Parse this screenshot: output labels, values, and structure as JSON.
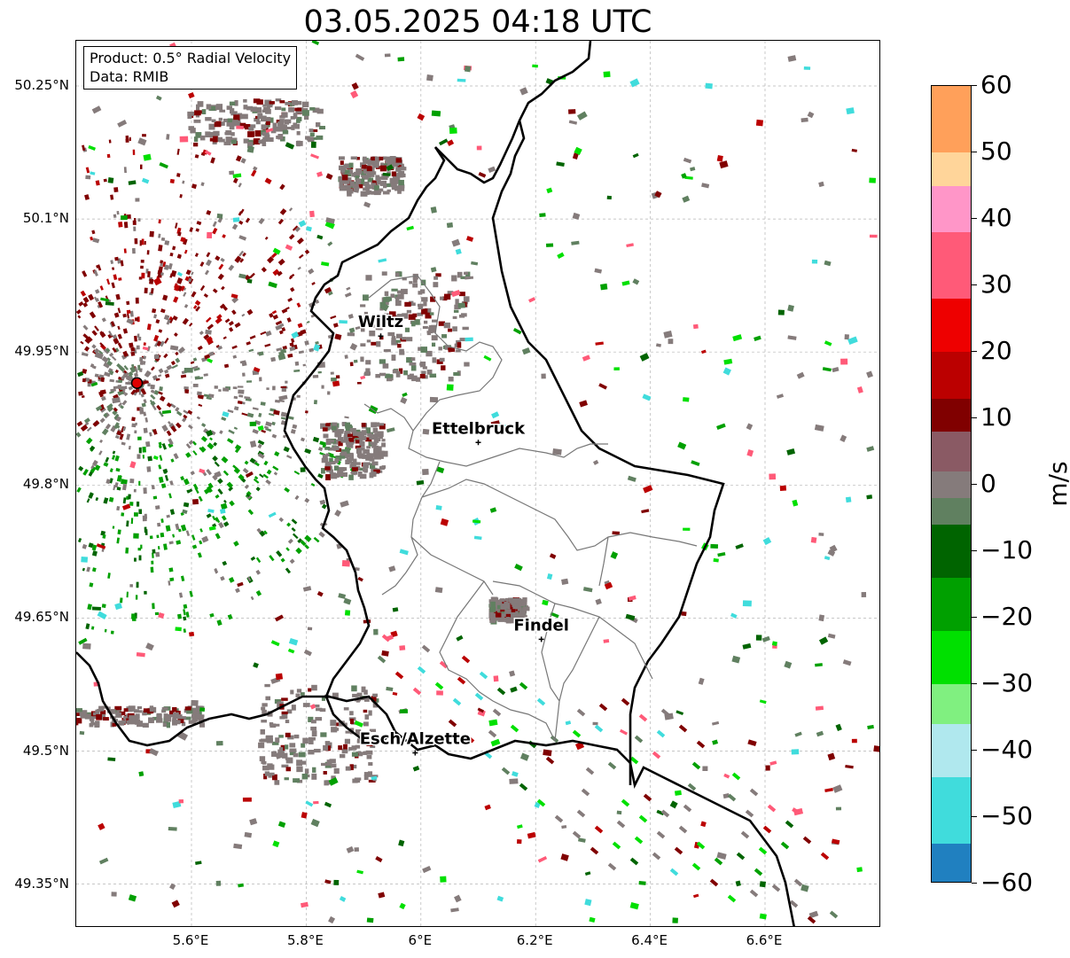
{
  "title": "03.05.2025 04:18 UTC",
  "info": {
    "product": "Product: 0.5° Radial Velocity",
    "data": "Data: RMIB"
  },
  "map": {
    "lon_range": [
      5.4,
      6.8
    ],
    "lat_range": [
      49.3,
      50.3
    ],
    "lat_ticks": [
      {
        "value": 50.25,
        "label": "50.25°N"
      },
      {
        "value": 50.1,
        "label": "50.1°N"
      },
      {
        "value": 49.95,
        "label": "49.95°N"
      },
      {
        "value": 49.8,
        "label": "49.8°N"
      },
      {
        "value": 49.65,
        "label": "49.65°N"
      },
      {
        "value": 49.5,
        "label": "49.5°N"
      },
      {
        "value": 49.35,
        "label": "49.35°N"
      }
    ],
    "lon_ticks": [
      {
        "value": 5.6,
        "label": "5.6°E"
      },
      {
        "value": 5.8,
        "label": "5.8°E"
      },
      {
        "value": 6.0,
        "label": "6°E"
      },
      {
        "value": 6.2,
        "label": "6.2°E"
      },
      {
        "value": 6.4,
        "label": "6.4°E"
      },
      {
        "value": 6.6,
        "label": "6.6°E"
      }
    ],
    "grid": true,
    "radar_site": {
      "lon": 5.505,
      "lat": 49.915
    },
    "cities": [
      {
        "name": "Wiltz",
        "lon": 5.93,
        "lat": 49.968
      },
      {
        "name": "Ettelbruck",
        "lon": 6.1,
        "lat": 49.848
      },
      {
        "name": "Findel",
        "lon": 6.21,
        "lat": 49.626
      },
      {
        "name": "Esch/Alzette",
        "lon": 5.99,
        "lat": 49.498
      }
    ]
  },
  "colorbar": {
    "unit": "m/s",
    "min": -60,
    "max": 60,
    "ticks": [
      {
        "value": 60,
        "label": "60"
      },
      {
        "value": 50,
        "label": "50"
      },
      {
        "value": 40,
        "label": "40"
      },
      {
        "value": 30,
        "label": "30"
      },
      {
        "value": 20,
        "label": "20"
      },
      {
        "value": 10,
        "label": "10"
      },
      {
        "value": 0,
        "label": "0"
      },
      {
        "value": -10,
        "label": "−10"
      },
      {
        "value": -20,
        "label": "−20"
      },
      {
        "value": -30,
        "label": "−30"
      },
      {
        "value": -40,
        "label": "−40"
      },
      {
        "value": -50,
        "label": "−50"
      },
      {
        "value": -60,
        "label": "−60"
      }
    ],
    "stops": [
      {
        "from": 50,
        "to": 60,
        "color": "#ffa05a"
      },
      {
        "from": 45,
        "to": 50,
        "color": "#ffd59a"
      },
      {
        "from": 38,
        "to": 45,
        "color": "#ff96c8"
      },
      {
        "from": 28,
        "to": 38,
        "color": "#ff5a78"
      },
      {
        "from": 20,
        "to": 28,
        "color": "#ee0000"
      },
      {
        "from": 13,
        "to": 20,
        "color": "#bb0000"
      },
      {
        "from": 8,
        "to": 13,
        "color": "#800000"
      },
      {
        "from": 2,
        "to": 8,
        "color": "#8a5a64"
      },
      {
        "from": -2,
        "to": 2,
        "color": "#857b7b"
      },
      {
        "from": -6,
        "to": -2,
        "color": "#608060"
      },
      {
        "from": -14,
        "to": -6,
        "color": "#006400"
      },
      {
        "from": -22,
        "to": -14,
        "color": "#00a000"
      },
      {
        "from": -30,
        "to": -22,
        "color": "#00e000"
      },
      {
        "from": -36,
        "to": -30,
        "color": "#80f080"
      },
      {
        "from": -44,
        "to": -36,
        "color": "#b0e8ee"
      },
      {
        "from": -54,
        "to": -44,
        "color": "#40dcdc"
      },
      {
        "from": -60,
        "to": -54,
        "color": "#2080c0"
      }
    ]
  }
}
